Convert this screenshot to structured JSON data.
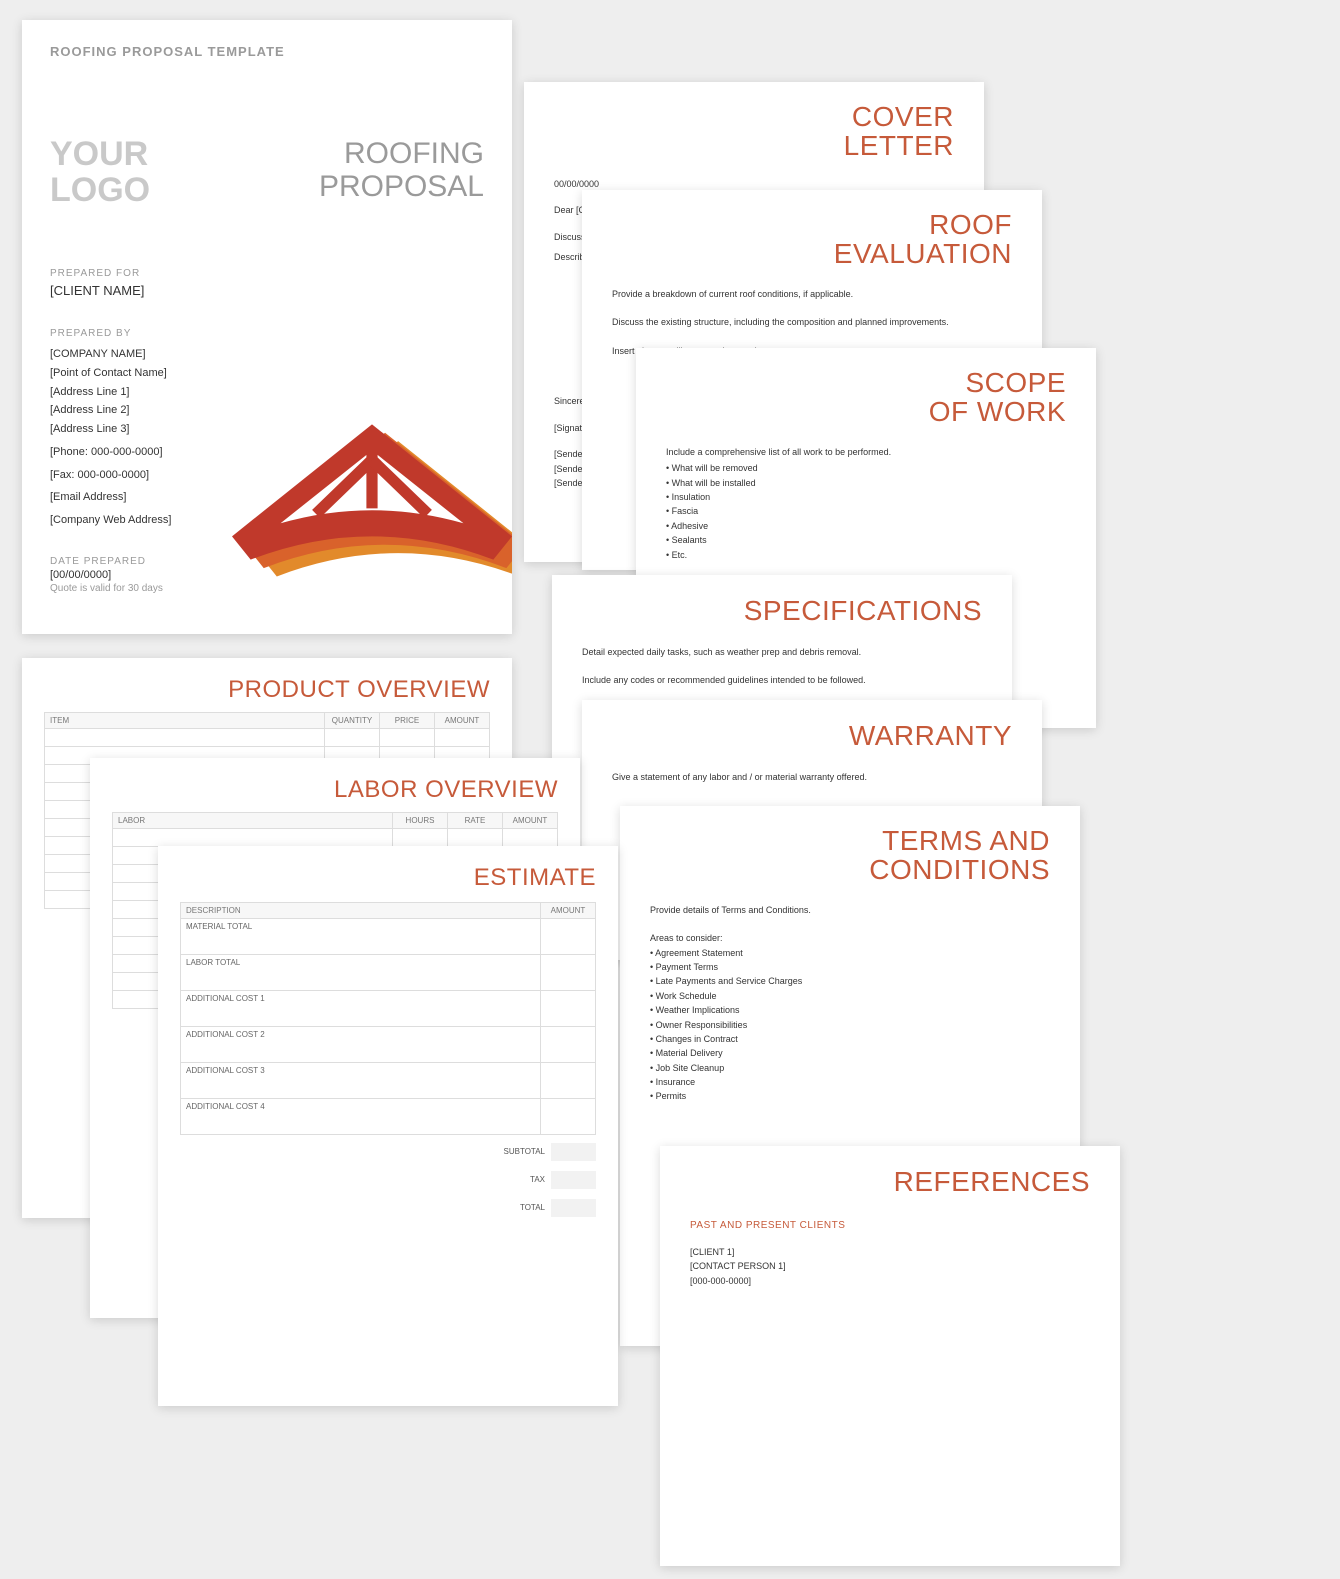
{
  "colors": {
    "accent": "#c65a3a",
    "gray_text": "#9a9a9a",
    "light_gray_text": "#bdbdbd",
    "body": "#333333",
    "page_bg": "#ffffff",
    "canvas_bg": "#eeeeee",
    "table_border": "#dddddd",
    "table_header_bg": "#f7f7f7",
    "truss_red": "#c0392b",
    "truss_orange": "#e28a2b"
  },
  "cover": {
    "header": "ROOFING PROPOSAL TEMPLATE",
    "logo_line1": "YOUR",
    "logo_line2": "LOGO",
    "title_line1": "ROOFING",
    "title_line2": "PROPOSAL",
    "prepared_for_label": "PREPARED FOR",
    "client_name": "[CLIENT NAME]",
    "prepared_by_label": "PREPARED BY",
    "company_name": "[COMPANY NAME]",
    "contact_name": "[Point of Contact Name]",
    "address1": "[Address Line 1]",
    "address2": "[Address Line 2]",
    "address3": "[Address Line 3]",
    "phone": "[Phone: 000-000-0000]",
    "fax": "[Fax: 000-000-0000]",
    "email": "[Email Address]",
    "web": "[Company Web Address]",
    "date_label": "DATE PREPARED",
    "date": "[00/00/0000]",
    "validity": "Quote is valid for 30 days"
  },
  "cover_letter": {
    "title": "COVER\nLETTER",
    "date": "00/00/0000",
    "salutation": "Dear [Client First and Last Name],",
    "line1": "Discuss yo",
    "line2": "Describe w",
    "closing": "Sincerely,",
    "signature": "[Signature",
    "sender1": "[Sender Fi",
    "sender2": "[Sender Ph",
    "sender3": "[Sender Em"
  },
  "roof_eval": {
    "title": "ROOF\nEVALUATION",
    "p1": "Provide a breakdown of current roof conditions, if applicable.",
    "p2": "Discuss the existing structure, including the composition and planned improvements.",
    "p3": "Insert photos to illustrate points made."
  },
  "scope": {
    "title": "SCOPE\nOF WORK",
    "intro": "Include a comprehensive list of all work to be performed.",
    "items": [
      "What will be removed",
      "What will be installed",
      "Insulation",
      "Fascia",
      "Adhesive",
      "Sealants",
      "Etc."
    ]
  },
  "specs": {
    "title": "SPECIFICATIONS",
    "p1": "Detail expected daily tasks, such as weather prep and debris removal.",
    "p2": "Include any codes or recommended guidelines intended to be followed."
  },
  "warranty": {
    "title": "WARRANTY",
    "p1": "Give a statement of any labor and / or material warranty offered."
  },
  "terms": {
    "title": "TERMS AND\nCONDITIONS",
    "intro": "Provide details of Terms and Conditions.",
    "areas_label": "Areas to consider:",
    "items": [
      "Agreement Statement",
      "Payment Terms",
      "Late Payments and Service Charges",
      "Work Schedule",
      "Weather Implications",
      "Owner Responsibilities",
      "Changes in Contract",
      "Material Delivery",
      "Job Site Cleanup",
      "Insurance",
      "Permits"
    ]
  },
  "references": {
    "title": "REFERENCES",
    "subtitle": "PAST AND PRESENT CLIENTS",
    "client": "[CLIENT 1]",
    "contact": "[CONTACT PERSON 1]",
    "phone": "[000-000-0000]"
  },
  "product": {
    "title": "PRODUCT OVERVIEW",
    "columns": [
      "ITEM",
      "QUANTITY",
      "PRICE",
      "AMOUNT"
    ],
    "blank_rows": 10
  },
  "labor": {
    "title": "LABOR OVERVIEW",
    "columns": [
      "LABOR",
      "HOURS",
      "RATE",
      "AMOUNT"
    ],
    "blank_rows": 10
  },
  "estimate": {
    "title": "ESTIMATE",
    "columns": [
      "DESCRIPTION",
      "AMOUNT"
    ],
    "rows": [
      "MATERIAL TOTAL",
      "LABOR TOTAL",
      "ADDITIONAL COST 1",
      "ADDITIONAL COST 2",
      "ADDITIONAL COST 3",
      "ADDITIONAL COST 4"
    ],
    "subtotal": "SUBTOTAL",
    "tax": "TAX",
    "total": "TOTAL"
  }
}
